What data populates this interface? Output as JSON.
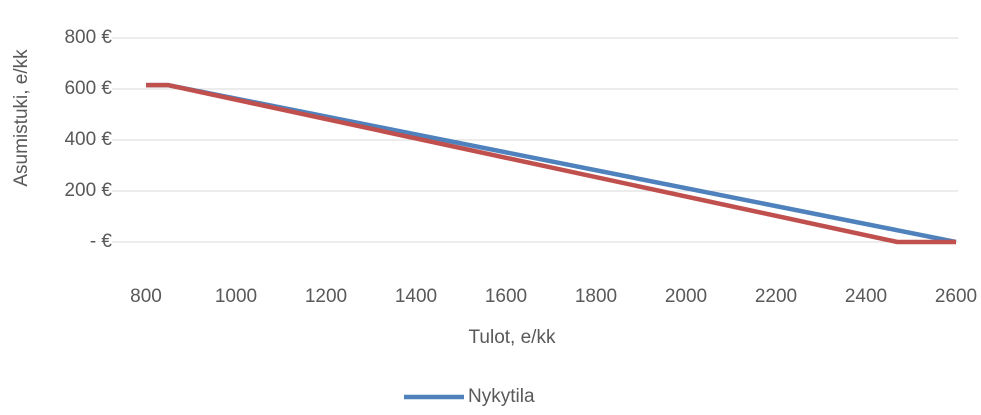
{
  "chart_data": {
    "type": "line",
    "x_label": "Tulot, e/kk",
    "y_label": "Asumistuki, e/kk",
    "x": [
      800,
      850,
      2470,
      2600
    ],
    "series": [
      {
        "name": "Nykytila",
        "color": "#4f81bd",
        "values": [
          615,
          615,
          46,
          0
        ]
      },
      {
        "color": "#c0504d",
        "values": [
          615,
          615,
          0,
          0
        ]
      }
    ],
    "xlim": [
      800,
      2600
    ],
    "xticks": [
      800,
      1000,
      1200,
      1400,
      1600,
      1800,
      2000,
      2200,
      2400,
      2600
    ],
    "ylim": [
      0,
      800
    ],
    "yticks": [
      {
        "value": 0,
        "label": "- €"
      },
      {
        "value": 200,
        "label": "200 €"
      },
      {
        "value": 400,
        "label": "400 €"
      },
      {
        "value": 600,
        "label": "600 €"
      },
      {
        "value": 800,
        "label": "800 €"
      }
    ],
    "grid": true,
    "legend": "bottom"
  }
}
